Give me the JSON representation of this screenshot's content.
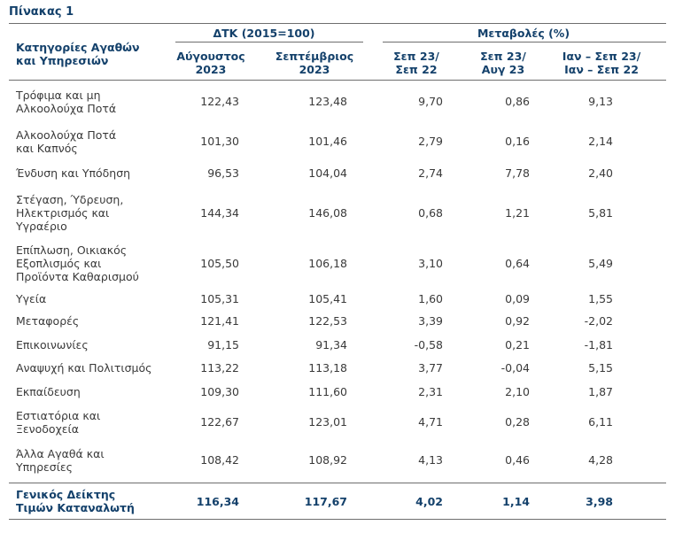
{
  "caption": "Πίνακας 1",
  "header": {
    "category": "Κατηγορίες Αγαθών\nκαι Υπηρεσιών",
    "group1": "ΔΤΚ (2015=100)",
    "group2": "Μεταβολές (%)",
    "col1": "Αύγουστος\n2023",
    "col2": "Σεπτέμβριος\n2023",
    "col3": "Σεπ 23/\nΣεπ 22",
    "col4": "Σεπ 23/\nΑυγ 23",
    "col5": "Ιαν – Σεπ 23/\nΙαν – Σεπ 22"
  },
  "rows": [
    {
      "category": "Τρόφιμα και μη\nΑλκοολούχα Ποτά",
      "v": [
        "122,43",
        "123,48",
        "9,70",
        "0,86",
        "9,13"
      ]
    },
    {
      "category": "Αλκοολούχα Ποτά\nκαι Καπνός",
      "v": [
        "101,30",
        "101,46",
        "2,79",
        "0,16",
        "2,14"
      ]
    },
    {
      "category": "Ένδυση και Υπόδηση",
      "v": [
        "96,53",
        "104,04",
        "2,74",
        "7,78",
        "2,40"
      ]
    },
    {
      "category": "Στέγαση, Ύδρευση,\nΗλεκτρισμός και\nΥγραέριο",
      "v": [
        "144,34",
        "146,08",
        "0,68",
        "1,21",
        "5,81"
      ]
    },
    {
      "category": "Επίπλωση, Οικιακός\nΕξοπλισμός και\nΠροϊόντα Καθαρισμού",
      "v": [
        "105,50",
        "106,18",
        "3,10",
        "0,64",
        "5,49"
      ]
    },
    {
      "category": "Υγεία",
      "v": [
        "105,31",
        "105,41",
        "1,60",
        "0,09",
        "1,55"
      ]
    },
    {
      "category": "Μεταφορές",
      "v": [
        "121,41",
        "122,53",
        "3,39",
        "0,92",
        "-2,02"
      ]
    },
    {
      "category": "Επικοινωνίες",
      "v": [
        "91,15",
        "91,34",
        "-0,58",
        "0,21",
        "-1,81"
      ]
    },
    {
      "category": "Αναψυχή και Πολιτισμός",
      "v": [
        "113,22",
        "113,18",
        "3,77",
        "-0,04",
        "5,15"
      ]
    },
    {
      "category": "Εκπαίδευση",
      "v": [
        "109,30",
        "111,60",
        "2,31",
        "2,10",
        "1,87"
      ]
    },
    {
      "category": "Εστιατόρια και\nΞενοδοχεία",
      "v": [
        "122,67",
        "123,01",
        "4,71",
        "0,28",
        "6,11"
      ]
    },
    {
      "category": "Άλλα Αγαθά και\nΥπηρεσίες",
      "v": [
        "108,42",
        "108,92",
        "4,13",
        "0,46",
        "4,28"
      ]
    }
  ],
  "total": {
    "category": "Γενικός Δείκτης\nΤιμών Καταναλωτή",
    "v": [
      "116,34",
      "117,67",
      "4,02",
      "1,14",
      "3,98"
    ]
  }
}
